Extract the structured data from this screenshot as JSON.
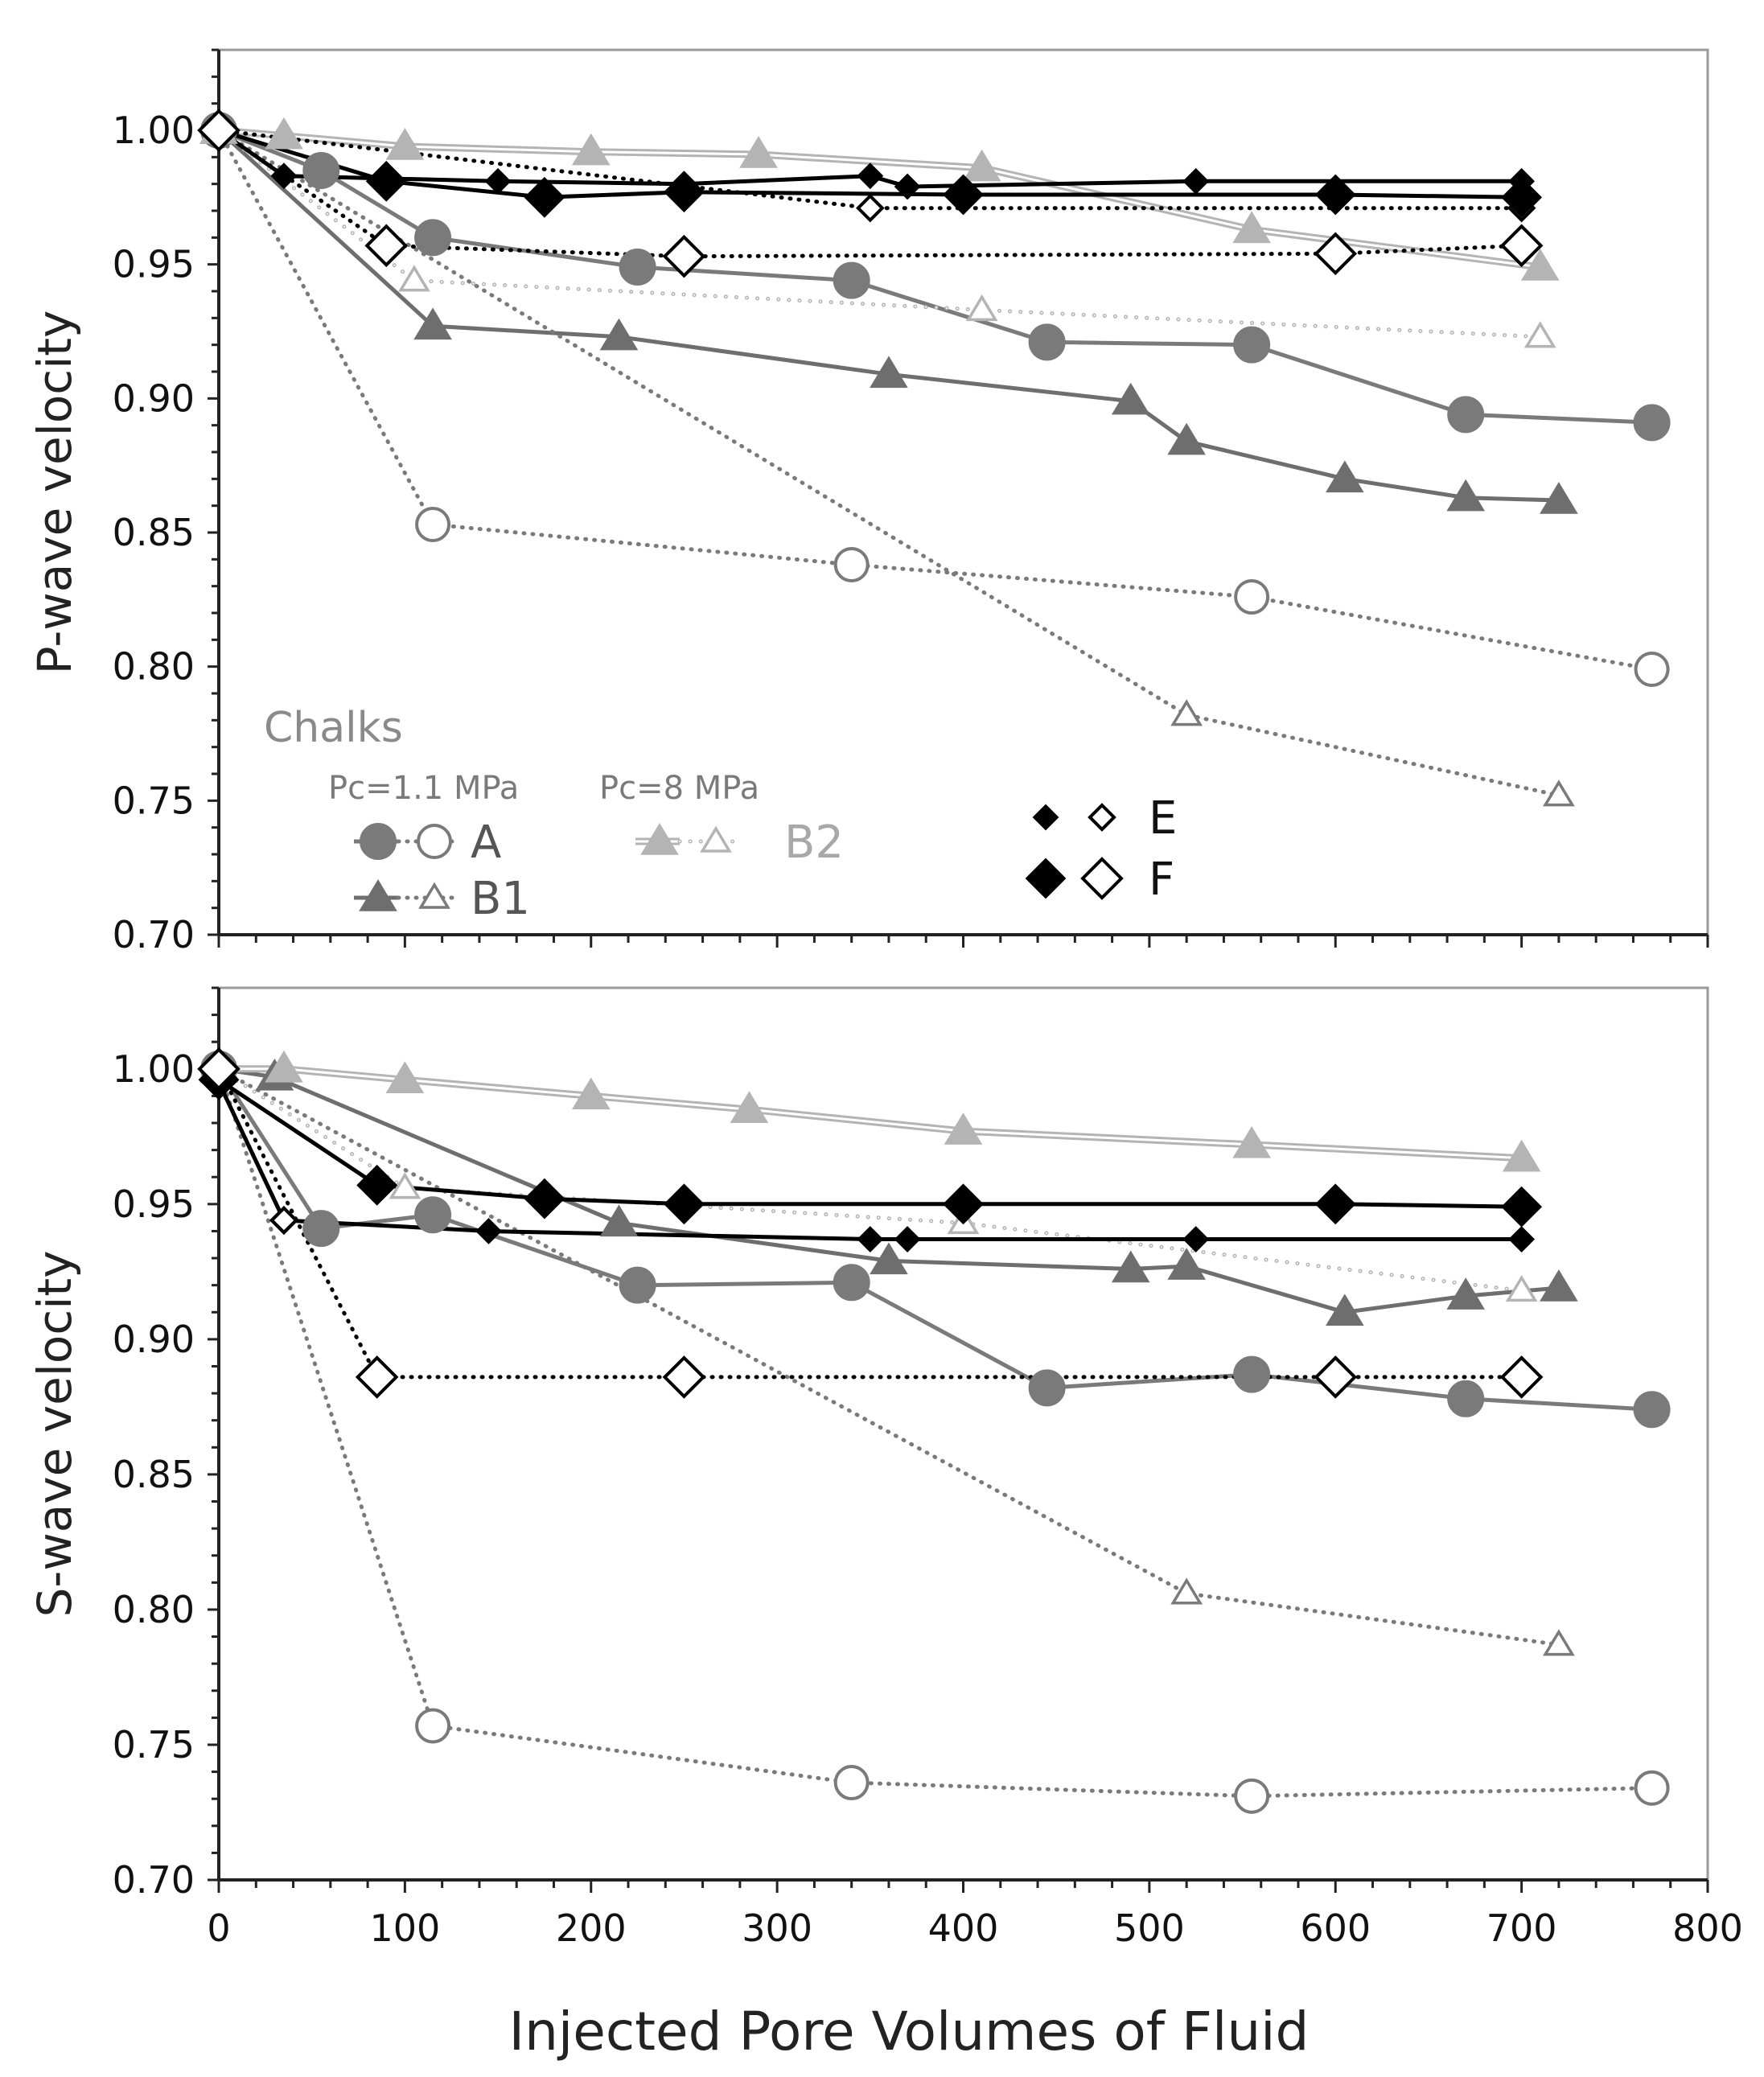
{
  "chart_data": {
    "type": "line",
    "xlabel": "Injected Pore Volumes of Fluid",
    "xlim": [
      0,
      800
    ],
    "xticks": [
      0,
      100,
      200,
      300,
      400,
      500,
      600,
      700,
      800
    ],
    "yticks": [
      0.7,
      0.75,
      0.8,
      0.85,
      0.9,
      0.95,
      1.0
    ],
    "styles": {
      "A_solid": {
        "color": "#7a7a7a",
        "line": "solid",
        "marker": "circle",
        "fill": true
      },
      "A_open": {
        "color": "#7a7a7a",
        "line": "dotted",
        "marker": "circle",
        "fill": false
      },
      "B1_solid": {
        "color": "#6e6e6e",
        "line": "solid",
        "marker": "triangle",
        "fill": true
      },
      "B1_open": {
        "color": "#7a7a7a",
        "line": "dotted",
        "marker": "triangle",
        "fill": false
      },
      "B2_solid": {
        "color": "#b4b4b4",
        "line": "double",
        "marker": "triangle",
        "fill": true
      },
      "B2_open": {
        "color": "#b4b4b4",
        "line": "circles",
        "marker": "triangle",
        "fill": false
      },
      "E_solid": {
        "color": "#000000",
        "line": "solid",
        "marker": "diamond-small",
        "fill": true
      },
      "E_open": {
        "color": "#000000",
        "line": "dotted",
        "marker": "diamond-small",
        "fill": false
      },
      "F_solid": {
        "color": "#000000",
        "line": "solid",
        "marker": "diamond",
        "fill": true
      },
      "F_open": {
        "color": "#000000",
        "line": "dotted",
        "marker": "diamond",
        "fill": false
      }
    },
    "panels": [
      {
        "ylabel": "P-wave velocity",
        "ylim": [
          0.7,
          1.03
        ],
        "series": [
          {
            "name": "A (Pc=1.1 MPa)",
            "style": "A_solid",
            "x": [
              0,
              55,
              115,
              225,
              340,
              445,
              555,
              670,
              770
            ],
            "y": [
              1.0,
              0.985,
              0.96,
              0.949,
              0.944,
              0.921,
              0.92,
              0.894,
              0.891
            ]
          },
          {
            "name": "A (Pc=8 MPa)",
            "style": "A_open",
            "x": [
              0,
              115,
              340,
              555,
              770
            ],
            "y": [
              1.0,
              0.853,
              0.838,
              0.826,
              0.799
            ]
          },
          {
            "name": "B1 (Pc=1.1 MPa)",
            "style": "B1_solid",
            "x": [
              0,
              115,
              215,
              360,
              490,
              520,
              605,
              670,
              720
            ],
            "y": [
              1.0,
              0.927,
              0.923,
              0.909,
              0.899,
              0.884,
              0.87,
              0.863,
              0.862
            ]
          },
          {
            "name": "B1 (Pc=8 MPa)",
            "style": "B1_open",
            "x": [
              0,
              520,
              720
            ],
            "y": [
              1.0,
              0.782,
              0.752
            ]
          },
          {
            "name": "B2 (Pc=1.1 MPa)",
            "style": "B2_solid",
            "x": [
              0,
              35,
              100,
              200,
              290,
              410,
              555,
              710
            ],
            "y": [
              1.0,
              0.998,
              0.994,
              0.992,
              0.991,
              0.986,
              0.963,
              0.949
            ]
          },
          {
            "name": "B2 (Pc=8 MPa)",
            "style": "B2_open",
            "x": [
              0,
              105,
              410,
              710
            ],
            "y": [
              1.0,
              0.944,
              0.933,
              0.923
            ]
          },
          {
            "name": "E (Pc=1.1 MPa)",
            "style": "E_solid",
            "x": [
              0,
              35,
              150,
              250,
              350,
              370,
              525,
              700
            ],
            "y": [
              1.0,
              0.983,
              0.981,
              0.98,
              0.983,
              0.979,
              0.981,
              0.981
            ]
          },
          {
            "name": "E (Pc=8 MPa)",
            "style": "E_open",
            "x": [
              0,
              350,
              700
            ],
            "y": [
              1.0,
              0.971,
              0.971
            ]
          },
          {
            "name": "F (Pc=1.1 MPa)",
            "style": "F_solid",
            "x": [
              0,
              90,
              175,
              250,
              400,
              600,
              700
            ],
            "y": [
              1.0,
              0.981,
              0.975,
              0.977,
              0.976,
              0.976,
              0.975
            ]
          },
          {
            "name": "F (Pc=8 MPa)",
            "style": "F_open",
            "x": [
              0,
              90,
              250,
              600,
              700
            ],
            "y": [
              1.0,
              0.957,
              0.953,
              0.954,
              0.957
            ]
          }
        ]
      },
      {
        "ylabel": "S-wave velocity",
        "ylim": [
          0.7,
          1.03
        ],
        "series": [
          {
            "name": "A (Pc=1.1 MPa)",
            "style": "A_solid",
            "x": [
              0,
              55,
              115,
              225,
              340,
              445,
              555,
              670,
              770
            ],
            "y": [
              1.0,
              0.941,
              0.946,
              0.92,
              0.921,
              0.882,
              0.887,
              0.878,
              0.874
            ]
          },
          {
            "name": "A (Pc=8 MPa)",
            "style": "A_open",
            "x": [
              0,
              115,
              340,
              555,
              770
            ],
            "y": [
              1.0,
              0.757,
              0.736,
              0.731,
              0.734
            ]
          },
          {
            "name": "B1 (Pc=1.1 MPa)",
            "style": "B1_solid",
            "x": [
              0,
              30,
              215,
              360,
              490,
              520,
              605,
              670,
              720
            ],
            "y": [
              1.0,
              0.997,
              0.943,
              0.929,
              0.926,
              0.927,
              0.91,
              0.916,
              0.919
            ]
          },
          {
            "name": "B1 (Pc=8 MPa)",
            "style": "B1_open",
            "x": [
              0,
              520,
              720
            ],
            "y": [
              1.0,
              0.806,
              0.787
            ]
          },
          {
            "name": "B2 (Pc=1.1 MPa)",
            "style": "B2_solid",
            "x": [
              0,
              35,
              100,
              200,
              285,
              400,
              555,
              700
            ],
            "y": [
              1.0,
              1.0,
              0.996,
              0.99,
              0.985,
              0.977,
              0.972,
              0.967
            ]
          },
          {
            "name": "B2 (Pc=8 MPa)",
            "style": "B2_open",
            "x": [
              0,
              100,
              400,
              700
            ],
            "y": [
              1.0,
              0.956,
              0.943,
              0.918
            ]
          },
          {
            "name": "E (Pc=1.1 MPa)",
            "style": "E_solid",
            "x": [
              0,
              35,
              145,
              350,
              370,
              525,
              700
            ],
            "y": [
              0.995,
              0.944,
              0.94,
              0.937,
              0.937,
              0.937,
              0.937
            ]
          },
          {
            "name": "E (Pc=8 MPa)",
            "style": "E_open",
            "x": [
              0,
              35,
              35,
              35,
              35,
              35,
              35
            ],
            "y": [
              0.995,
              0.944,
              0.944,
              0.944,
              0.944,
              0.944,
              0.944
            ]
          },
          {
            "name": "F (Pc=1.1 MPa)",
            "style": "F_solid",
            "x": [
              0,
              85,
              175,
              250,
              400,
              600,
              700
            ],
            "y": [
              0.996,
              0.957,
              0.952,
              0.95,
              0.95,
              0.95,
              0.949
            ]
          },
          {
            "name": "F (Pc=8 MPa)",
            "style": "F_open",
            "x": [
              0,
              85,
              250,
              600,
              700
            ],
            "y": [
              1.0,
              0.886,
              0.886,
              0.886,
              0.886
            ]
          }
        ]
      }
    ],
    "legend": {
      "title": "Chalks",
      "header_low": "Pc=1.1 MPa",
      "header_high": "Pc=8 MPa",
      "entries": [
        {
          "label": "A",
          "solid": "A_solid",
          "open": "A_open"
        },
        {
          "label": "B1",
          "solid": "B1_solid",
          "open": "B1_open"
        },
        {
          "label": "B2",
          "solid": "B2_solid",
          "open": "B2_open"
        },
        {
          "label": "E",
          "solid": "E_solid",
          "open": "E_open"
        },
        {
          "label": "F",
          "solid": "F_solid",
          "open": "F_open"
        }
      ]
    }
  }
}
